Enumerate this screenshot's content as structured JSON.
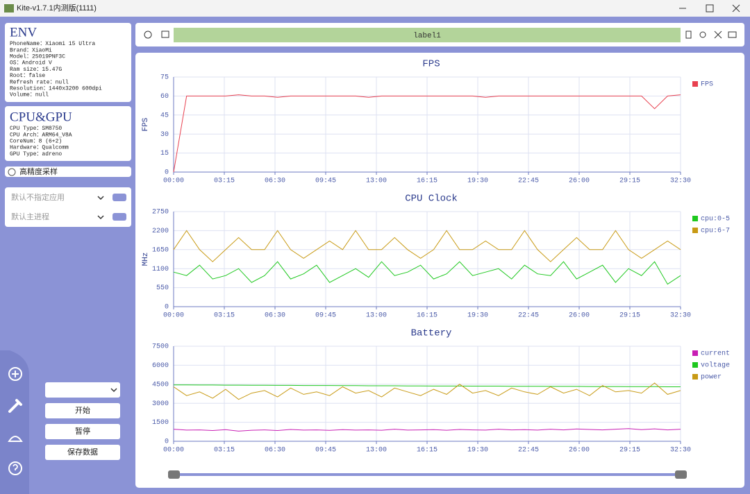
{
  "window": {
    "title": "Kite-v1.7.1内测版(1111)"
  },
  "env": {
    "title": "ENV",
    "lines": [
      "PhoneName：Xiaomi 15 Ultra",
      "Brand：XiaoMi",
      "Model：25019PNF3C",
      "OS：Android V",
      "Ram size：15.47G",
      "Root：false",
      "Refresh rate：null",
      "Resolution：1440x3200 600dpi",
      "Volume：null"
    ]
  },
  "cpu_gpu": {
    "title": "CPU&GPU",
    "lines": [
      "CPU Type：SM8750",
      "CPU Arch：ARM64_V8A",
      "CoreNum：8 (6+2)",
      "Hardware：Qualcomm",
      "GPU Type：adreno"
    ]
  },
  "high_precision": "高精度采样",
  "app_select": "默认不指定应用",
  "process_select": "默认主进程",
  "buttons": [
    "开始",
    "暂停",
    "保存数据"
  ],
  "toolbar": {
    "label": "label1"
  },
  "chart_data": [
    {
      "type": "line",
      "title": "FPS",
      "y_label": "FPS",
      "x": [
        0,
        50,
        100,
        150,
        200,
        250,
        300,
        350,
        400,
        450,
        500,
        550,
        600,
        650,
        700,
        750,
        800,
        850,
        900,
        950,
        1000,
        1050,
        1100,
        1150,
        1200,
        1250,
        1300,
        1350,
        1400,
        1450,
        1500,
        1550,
        1600,
        1650,
        1700,
        1750,
        1800,
        1850,
        1900,
        1950
      ],
      "xlim": [
        0,
        1950
      ],
      "xticks": [
        {
          "value": 0,
          "label": "00:00"
        },
        {
          "value": 195,
          "label": "03:15"
        },
        {
          "value": 390,
          "label": "06:30"
        },
        {
          "value": 585,
          "label": "09:45"
        },
        {
          "value": 780,
          "label": "13:00"
        },
        {
          "value": 975,
          "label": "16:15"
        },
        {
          "value": 1170,
          "label": "19:30"
        },
        {
          "value": 1365,
          "label": "22:45"
        },
        {
          "value": 1560,
          "label": "26:00"
        },
        {
          "value": 1755,
          "label": "29:15"
        },
        {
          "value": 1950,
          "label": "32:30"
        }
      ],
      "ylim": [
        0,
        75
      ],
      "yticks": [
        0,
        15,
        30,
        45,
        60,
        75
      ],
      "grid": true,
      "series": [
        {
          "name": "FPS",
          "color": "#e8404f",
          "values": [
            0,
            60,
            60,
            60,
            60,
            61,
            60,
            60,
            59,
            60,
            60,
            60,
            60,
            60,
            60,
            59,
            60,
            60,
            60,
            60,
            60,
            60,
            60,
            60,
            59,
            60,
            60,
            60,
            60,
            60,
            60,
            60,
            60,
            60,
            60,
            60,
            60,
            50,
            60,
            61
          ]
        }
      ]
    },
    {
      "type": "line",
      "title": "CPU Clock",
      "y_label": "MHz",
      "x": [
        0,
        50,
        100,
        150,
        200,
        250,
        300,
        350,
        400,
        450,
        500,
        550,
        600,
        650,
        700,
        750,
        800,
        850,
        900,
        950,
        1000,
        1050,
        1100,
        1150,
        1200,
        1250,
        1300,
        1350,
        1400,
        1450,
        1500,
        1550,
        1600,
        1650,
        1700,
        1750,
        1800,
        1850,
        1900,
        1950
      ],
      "xlim": [
        0,
        1950
      ],
      "xticks": [
        {
          "value": 0,
          "label": "00:00"
        },
        {
          "value": 195,
          "label": "03:15"
        },
        {
          "value": 390,
          "label": "06:30"
        },
        {
          "value": 585,
          "label": "09:45"
        },
        {
          "value": 780,
          "label": "13:00"
        },
        {
          "value": 975,
          "label": "16:15"
        },
        {
          "value": 1170,
          "label": "19:30"
        },
        {
          "value": 1365,
          "label": "22:45"
        },
        {
          "value": 1560,
          "label": "26:00"
        },
        {
          "value": 1755,
          "label": "29:15"
        },
        {
          "value": 1950,
          "label": "32:30"
        }
      ],
      "ylim": [
        0,
        2750
      ],
      "yticks": [
        0,
        550,
        1100,
        1650,
        2200,
        2750
      ],
      "grid": true,
      "series": [
        {
          "name": "cpu:0-5",
          "color": "#1ec81e",
          "values": [
            1000,
            900,
            1200,
            800,
            900,
            1100,
            700,
            900,
            1300,
            800,
            950,
            1200,
            700,
            900,
            1100,
            850,
            1300,
            900,
            1000,
            1200,
            800,
            950,
            1300,
            900,
            1000,
            1100,
            800,
            1200,
            950,
            900,
            1300,
            800,
            1000,
            1200,
            700,
            1100,
            900,
            1300,
            650,
            900
          ]
        },
        {
          "name": "cpu:6-7",
          "color": "#c89a14",
          "values": [
            1650,
            2200,
            1650,
            1300,
            1650,
            2000,
            1650,
            1650,
            2200,
            1650,
            1400,
            1650,
            1900,
            1650,
            2200,
            1650,
            1650,
            2000,
            1650,
            1400,
            1650,
            2200,
            1650,
            1650,
            1900,
            1650,
            1650,
            2200,
            1650,
            1300,
            1650,
            2000,
            1650,
            1650,
            2200,
            1650,
            1400,
            1650,
            1900,
            1650
          ]
        }
      ]
    },
    {
      "type": "line",
      "title": "Battery",
      "x": [
        0,
        50,
        100,
        150,
        200,
        250,
        300,
        350,
        400,
        450,
        500,
        550,
        600,
        650,
        700,
        750,
        800,
        850,
        900,
        950,
        1000,
        1050,
        1100,
        1150,
        1200,
        1250,
        1300,
        1350,
        1400,
        1450,
        1500,
        1550,
        1600,
        1650,
        1700,
        1750,
        1800,
        1850,
        1900,
        1950
      ],
      "xlim": [
        0,
        1950
      ],
      "xticks": [
        {
          "value": 0,
          "label": "00:00"
        },
        {
          "value": 195,
          "label": "03:15"
        },
        {
          "value": 390,
          "label": "06:30"
        },
        {
          "value": 585,
          "label": "09:45"
        },
        {
          "value": 780,
          "label": "13:00"
        },
        {
          "value": 975,
          "label": "16:15"
        },
        {
          "value": 1170,
          "label": "19:30"
        },
        {
          "value": 1365,
          "label": "22:45"
        },
        {
          "value": 1560,
          "label": "26:00"
        },
        {
          "value": 1755,
          "label": "29:15"
        },
        {
          "value": 1950,
          "label": "32:30"
        }
      ],
      "ylim": [
        0,
        7500
      ],
      "yticks": [
        0,
        1500,
        3000,
        4500,
        6000,
        7500
      ],
      "grid": true,
      "series": [
        {
          "name": "current",
          "color": "#c81eb4",
          "values": [
            950,
            880,
            900,
            850,
            920,
            800,
            870,
            900,
            850,
            930,
            880,
            900,
            860,
            920,
            880,
            900,
            870,
            950,
            880,
            900,
            920,
            870,
            930,
            900,
            880,
            950,
            900,
            920,
            880,
            950,
            900,
            970,
            930,
            900,
            950,
            1000,
            920,
            980,
            900,
            950
          ]
        },
        {
          "name": "voltage",
          "color": "#1ec81e",
          "values": [
            4450,
            4450,
            4440,
            4440,
            4430,
            4430,
            4420,
            4420,
            4410,
            4410,
            4400,
            4400,
            4400,
            4390,
            4390,
            4380,
            4380,
            4380,
            4370,
            4370,
            4360,
            4360,
            4360,
            4350,
            4350,
            4350,
            4340,
            4340,
            4340,
            4330,
            4330,
            4330,
            4320,
            4320,
            4320,
            4310,
            4310,
            4310,
            4300,
            4300
          ]
        },
        {
          "name": "power",
          "color": "#c89a14",
          "values": [
            4300,
            3600,
            3900,
            3400,
            4100,
            3300,
            3800,
            4000,
            3500,
            4200,
            3700,
            3900,
            3600,
            4300,
            3800,
            4000,
            3500,
            4200,
            3900,
            3600,
            4100,
            3700,
            4500,
            3800,
            4000,
            3600,
            4200,
            3900,
            3700,
            4300,
            3800,
            4100,
            3600,
            4400,
            3900,
            4000,
            3800,
            4600,
            3700,
            4000
          ]
        }
      ]
    }
  ]
}
